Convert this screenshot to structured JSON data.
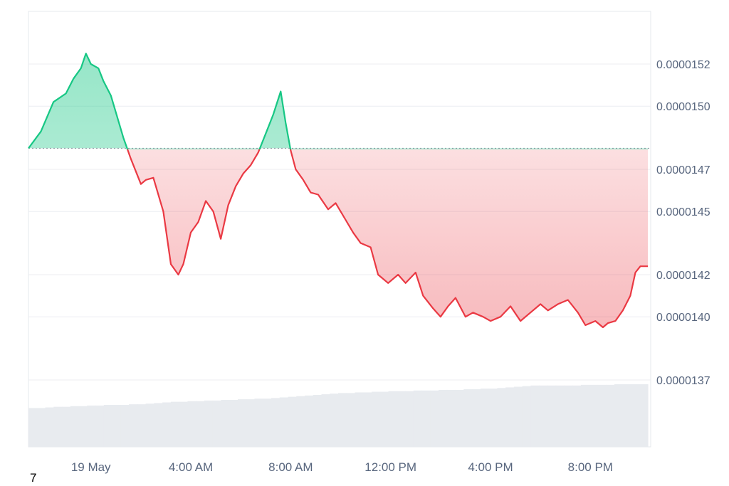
{
  "chart_data": {
    "type": "area",
    "title": "",
    "xlabel": "",
    "ylabel": "",
    "baseline": 1.48e-05,
    "ylim": [
      1.35e-05,
      1.55e-05
    ],
    "y_ticks": [
      "0.0000137",
      "0.0000140",
      "0.0000142",
      "0.0000145",
      "0.0000147",
      "0.0000150",
      "0.0000152"
    ],
    "y_tick_values": [
      1.37e-05,
      1.4e-05,
      1.42e-05,
      1.45e-05,
      1.47e-05,
      1.5e-05,
      1.52e-05
    ],
    "x_ticks": [
      "19 May",
      "4:00 AM",
      "8:00 AM",
      "12:00 PM",
      "4:00 PM",
      "8:00 PM"
    ],
    "x_tick_hours": [
      0,
      4,
      8,
      12,
      16,
      20
    ],
    "x_range_hours": [
      -2.5,
      22.3
    ],
    "colors": {
      "up": "#16c784",
      "down": "#ea3943",
      "volume": "#e8ebef"
    },
    "series": [
      {
        "x_hours": [
          -2.5,
          -2.0,
          -1.5,
          -1.0,
          -0.7,
          -0.4,
          -0.2,
          0.0,
          0.3,
          0.5,
          0.8,
          1.0,
          1.3,
          1.6,
          1.9,
          2.0,
          2.2,
          2.5,
          2.9,
          3.2,
          3.5,
          3.7,
          4.0,
          4.3,
          4.6,
          4.9,
          5.2,
          5.5,
          5.8,
          6.1,
          6.4,
          6.7,
          7.0,
          7.3,
          7.6,
          7.8,
          8.0,
          8.2,
          8.5,
          8.8,
          9.1,
          9.5,
          9.8,
          10.2,
          10.5,
          10.8,
          11.2,
          11.5,
          11.9,
          12.3,
          12.6,
          13.0,
          13.3,
          13.7,
          14.0,
          14.3,
          14.6,
          15.0,
          15.3,
          15.7,
          16.0,
          16.4,
          16.8,
          17.2,
          17.6,
          18.0,
          18.3,
          18.7,
          19.1,
          19.5,
          19.8,
          20.2,
          20.5,
          20.7,
          21.0,
          21.3,
          21.6,
          21.8,
          22.0,
          22.3
        ],
        "y": [
          1.48e-05,
          1.488e-05,
          1.502e-05,
          1.506e-05,
          1.513e-05,
          1.518e-05,
          1.525e-05,
          1.52e-05,
          1.518e-05,
          1.512e-05,
          1.505e-05,
          1.497e-05,
          1.485e-05,
          1.475e-05,
          1.466e-05,
          1.463e-05,
          1.465e-05,
          1.466e-05,
          1.45e-05,
          1.425e-05,
          1.42e-05,
          1.425e-05,
          1.44e-05,
          1.445e-05,
          1.455e-05,
          1.45e-05,
          1.437e-05,
          1.453e-05,
          1.462e-05,
          1.468e-05,
          1.472e-05,
          1.478e-05,
          1.487e-05,
          1.496e-05,
          1.507e-05,
          1.492e-05,
          1.479e-05,
          1.47e-05,
          1.465e-05,
          1.459e-05,
          1.458e-05,
          1.451e-05,
          1.454e-05,
          1.446e-05,
          1.44e-05,
          1.435e-05,
          1.433e-05,
          1.42e-05,
          1.416e-05,
          1.42e-05,
          1.416e-05,
          1.421e-05,
          1.41e-05,
          1.404e-05,
          1.4e-05,
          1.405e-05,
          1.409e-05,
          1.4e-05,
          1.402e-05,
          1.4e-05,
          1.398e-05,
          1.4e-05,
          1.405e-05,
          1.398e-05,
          1.402e-05,
          1.406e-05,
          1.403e-05,
          1.406e-05,
          1.408e-05,
          1.402e-05,
          1.396e-05,
          1.398e-05,
          1.395e-05,
          1.397e-05,
          1.398e-05,
          1.403e-05,
          1.41e-05,
          1.421e-05,
          1.424e-05,
          1.424e-05
        ]
      }
    ],
    "volume": [
      0.62,
      0.62,
      0.63,
      0.64,
      0.64,
      0.65,
      0.65,
      0.66,
      0.66,
      0.67,
      0.67,
      0.67,
      0.68,
      0.68,
      0.69,
      0.7,
      0.71,
      0.72,
      0.72,
      0.73,
      0.73,
      0.74,
      0.74,
      0.75,
      0.75,
      0.76,
      0.76,
      0.77,
      0.77,
      0.78,
      0.79,
      0.8,
      0.81,
      0.82,
      0.83,
      0.84,
      0.85,
      0.86,
      0.86,
      0.87,
      0.87,
      0.88,
      0.88,
      0.89,
      0.89,
      0.89,
      0.9,
      0.9,
      0.9,
      0.91,
      0.91,
      0.91,
      0.92,
      0.92,
      0.93,
      0.93,
      0.94,
      0.95,
      0.96,
      0.97,
      0.98,
      0.98,
      0.98,
      0.98,
      0.98,
      0.98,
      0.99,
      0.99,
      0.99,
      0.99,
      1.0,
      1.0,
      1.0,
      1.0
    ],
    "grid": true,
    "legend": "none"
  },
  "footer": {
    "note": "7"
  }
}
